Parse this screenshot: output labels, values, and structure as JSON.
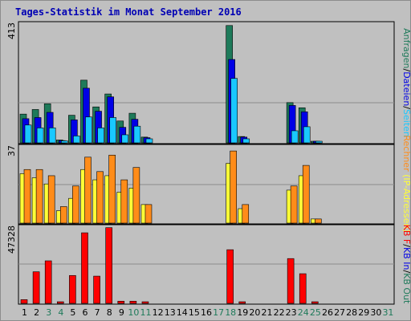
{
  "title": "Tages-Statistik im Monat September 2016",
  "colors": {
    "anfragen": "#1e7a5a",
    "dateien": "#0000e6",
    "seiten": "#19c8ff",
    "rechner": "#ff8c19",
    "ip": "#ffff37",
    "kbout": "#1e7a5a",
    "kbin": "#0000e6",
    "kbf": "#ff0000",
    "weekend_label": "#1e7a5a",
    "weekday_label": "#000000",
    "title": "#0000b4"
  },
  "chart_data": [
    {
      "type": "bar",
      "panel": "hits",
      "ymax_label": "413",
      "ylim": [
        0,
        413
      ],
      "legend_text": [
        {
          "text": "Anfragen",
          "color": "#1e7a5a"
        },
        {
          "text": "/",
          "color": "#000000"
        },
        {
          "text": "Dateien",
          "color": "#0000e6"
        },
        {
          "text": "/",
          "color": "#000000"
        },
        {
          "text": "Seiten",
          "color": "#19c8ff"
        }
      ],
      "categories": [
        "1",
        "2",
        "3",
        "4",
        "5",
        "6",
        "7",
        "8",
        "9",
        "10",
        "11",
        "12",
        "13",
        "14",
        "15",
        "16",
        "17",
        "18",
        "19",
        "20",
        "21",
        "22",
        "23",
        "24",
        "25",
        "26",
        "27",
        "28",
        "29",
        "30",
        "31"
      ],
      "series": [
        {
          "name": "Anfragen",
          "values": [
            100,
            116,
            136,
            10,
            96,
            218,
            125,
            170,
            76,
            103,
            20,
            0,
            0,
            0,
            0,
            0,
            0,
            408,
            22,
            0,
            0,
            0,
            140,
            122,
            5,
            0,
            0,
            0,
            0,
            0,
            0
          ]
        },
        {
          "name": "Dateien",
          "values": [
            84,
            88,
            106,
            8,
            80,
            190,
            110,
            160,
            54,
            82,
            18,
            0,
            0,
            0,
            0,
            0,
            0,
            290,
            20,
            0,
            0,
            0,
            130,
            108,
            4,
            0,
            0,
            0,
            0,
            0,
            0
          ]
        },
        {
          "name": "Seiten",
          "values": [
            62,
            52,
            52,
            7,
            24,
            90,
            52,
            88,
            28,
            58,
            14,
            0,
            0,
            0,
            0,
            0,
            0,
            224,
            14,
            0,
            0,
            0,
            42,
            56,
            3,
            0,
            0,
            0,
            0,
            0,
            0
          ]
        }
      ]
    },
    {
      "type": "bar",
      "panel": "visits",
      "ymax_label": "37",
      "ylim": [
        0,
        37
      ],
      "legend_text": [
        {
          "text": "Rechner",
          "color": "#ff8c19"
        },
        {
          "text": "(IP-Adressen)",
          "color": "#ffff37"
        }
      ],
      "categories": [
        "1",
        "2",
        "3",
        "4",
        "5",
        "6",
        "7",
        "8",
        "9",
        "10",
        "11",
        "12",
        "13",
        "14",
        "15",
        "16",
        "17",
        "18",
        "19",
        "20",
        "21",
        "22",
        "23",
        "24",
        "25",
        "26",
        "27",
        "28",
        "29",
        "30",
        "31"
      ],
      "series": [
        {
          "name": "IP-Adressen",
          "values": [
            24,
            22,
            19,
            6,
            12,
            26,
            21,
            23,
            15,
            17,
            9,
            0,
            0,
            0,
            0,
            0,
            0,
            29,
            7,
            0,
            0,
            0,
            16,
            23,
            2,
            0,
            0,
            0,
            0,
            0,
            0
          ]
        },
        {
          "name": "Rechner",
          "values": [
            26,
            26,
            23,
            8,
            18,
            32,
            25,
            33,
            21,
            27,
            9,
            0,
            0,
            0,
            0,
            0,
            0,
            35,
            9,
            0,
            0,
            0,
            18,
            28,
            2,
            0,
            0,
            0,
            0,
            0,
            0
          ]
        }
      ]
    },
    {
      "type": "bar",
      "panel": "traffic",
      "ymax_label": "47328",
      "ylim": [
        0,
        47328
      ],
      "legend_text": [
        {
          "text": "KB F",
          "color": "#ff0000"
        },
        {
          "text": "/",
          "color": "#000000"
        },
        {
          "text": "KB In",
          "color": "#0000e6"
        },
        {
          "text": "/",
          "color": "#000000"
        },
        {
          "text": "KB Out",
          "color": "#1e7a5a"
        }
      ],
      "categories": [
        "1",
        "2",
        "3",
        "4",
        "5",
        "6",
        "7",
        "8",
        "9",
        "10",
        "11",
        "12",
        "13",
        "14",
        "15",
        "16",
        "17",
        "18",
        "19",
        "20",
        "21",
        "22",
        "23",
        "24",
        "25",
        "26",
        "27",
        "28",
        "29",
        "30",
        "31"
      ],
      "series": [
        {
          "name": "KB F",
          "values": [
            2300,
            19600,
            26400,
            560,
            17300,
            43800,
            16900,
            47000,
            1350,
            1350,
            560,
            0,
            0,
            0,
            0,
            0,
            0,
            33300,
            560,
            0,
            0,
            0,
            27800,
            18400,
            560,
            0,
            0,
            0,
            0,
            0,
            0
          ]
        }
      ]
    }
  ],
  "x_axis": {
    "labels": [
      {
        "text": "1",
        "weekend": false
      },
      {
        "text": "2",
        "weekend": false
      },
      {
        "text": "3",
        "weekend": true
      },
      {
        "text": "4",
        "weekend": true
      },
      {
        "text": "5",
        "weekend": false
      },
      {
        "text": "6",
        "weekend": false
      },
      {
        "text": "7",
        "weekend": false
      },
      {
        "text": "8",
        "weekend": false
      },
      {
        "text": "9",
        "weekend": false
      },
      {
        "text": "10",
        "weekend": true
      },
      {
        "text": "11",
        "weekend": true
      },
      {
        "text": "12",
        "weekend": false
      },
      {
        "text": "13",
        "weekend": false
      },
      {
        "text": "14",
        "weekend": false
      },
      {
        "text": "15",
        "weekend": false
      },
      {
        "text": "16",
        "weekend": false
      },
      {
        "text": "17",
        "weekend": true
      },
      {
        "text": "18",
        "weekend": true
      },
      {
        "text": "19",
        "weekend": false
      },
      {
        "text": "20",
        "weekend": false
      },
      {
        "text": "21",
        "weekend": false
      },
      {
        "text": "22",
        "weekend": false
      },
      {
        "text": "23",
        "weekend": false
      },
      {
        "text": "24",
        "weekend": true
      },
      {
        "text": "25",
        "weekend": true
      },
      {
        "text": "26",
        "weekend": false
      },
      {
        "text": "27",
        "weekend": false
      },
      {
        "text": "28",
        "weekend": false
      },
      {
        "text": "29",
        "weekend": false
      },
      {
        "text": "30",
        "weekend": false
      },
      {
        "text": "31",
        "weekend": true
      }
    ]
  }
}
